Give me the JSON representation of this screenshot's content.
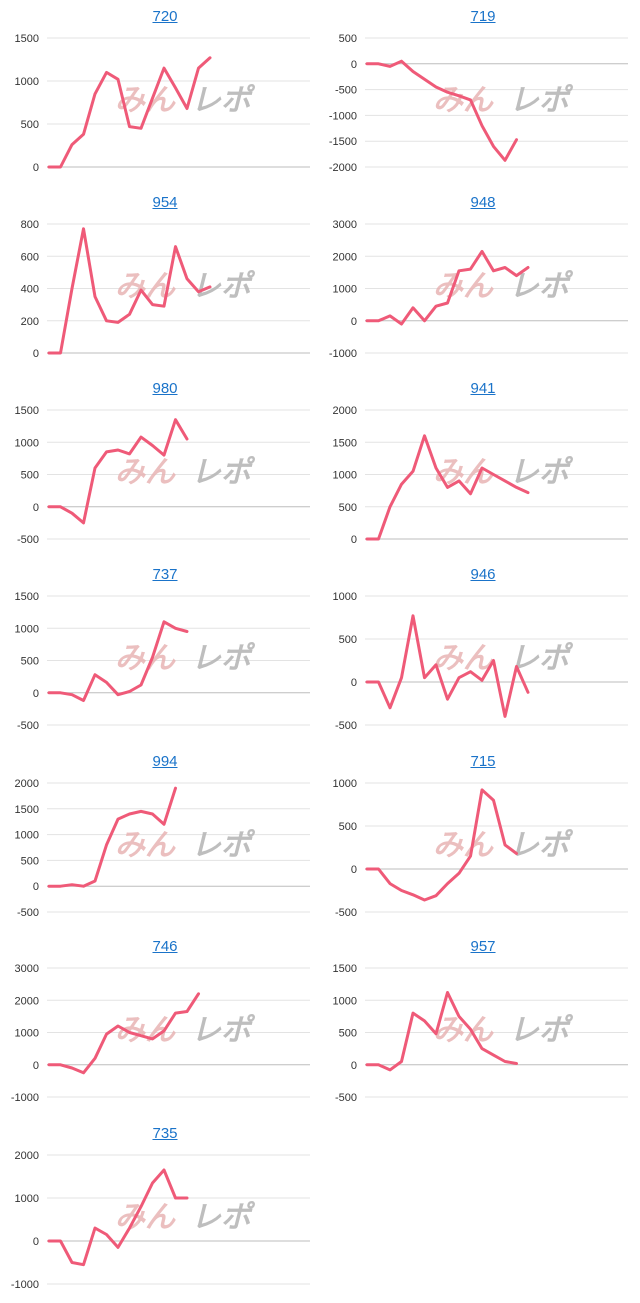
{
  "colors": {
    "line": "#ef5a78",
    "title": "#1a73c9"
  },
  "watermark": {
    "part1": "みん",
    "part2": "レポ"
  },
  "chart_data": [
    {
      "type": "line",
      "title": "720",
      "ylim": [
        0,
        1500
      ],
      "yticks": [
        0,
        500,
        1000,
        1500
      ],
      "values": [
        0,
        0,
        260,
        380,
        850,
        1100,
        1020,
        470,
        450,
        800,
        1150,
        920,
        680,
        1150,
        1270
      ]
    },
    {
      "type": "line",
      "title": "719",
      "ylim": [
        -2000,
        500
      ],
      "yticks": [
        -2000,
        -1500,
        -1000,
        -500,
        0,
        500
      ],
      "values": [
        0,
        0,
        -50,
        50,
        -150,
        -300,
        -450,
        -550,
        -620,
        -700,
        -1200,
        -1600,
        -1870,
        -1470
      ]
    },
    {
      "type": "line",
      "title": "954",
      "ylim": [
        0,
        800
      ],
      "yticks": [
        0,
        200,
        400,
        600,
        800
      ],
      "values": [
        0,
        0,
        400,
        770,
        350,
        200,
        190,
        240,
        390,
        300,
        290,
        660,
        460,
        380,
        410
      ]
    },
    {
      "type": "line",
      "title": "948",
      "ylim": [
        -1000,
        3000
      ],
      "yticks": [
        -1000,
        0,
        1000,
        2000,
        3000
      ],
      "values": [
        0,
        0,
        150,
        -100,
        400,
        0,
        450,
        550,
        1550,
        1600,
        2150,
        1550,
        1650,
        1400,
        1650
      ]
    },
    {
      "type": "line",
      "title": "980",
      "ylim": [
        -500,
        1500
      ],
      "yticks": [
        -500,
        0,
        500,
        1000,
        1500
      ],
      "values": [
        0,
        0,
        -100,
        -250,
        600,
        850,
        880,
        820,
        1080,
        950,
        800,
        1350,
        1050
      ]
    },
    {
      "type": "line",
      "title": "941",
      "ylim": [
        0,
        2000
      ],
      "yticks": [
        0,
        500,
        1000,
        1500,
        2000
      ],
      "values": [
        0,
        0,
        500,
        850,
        1050,
        1600,
        1100,
        800,
        900,
        700,
        1100,
        1000,
        900,
        800,
        720
      ]
    },
    {
      "type": "line",
      "title": "737",
      "ylim": [
        -500,
        1500
      ],
      "yticks": [
        -500,
        0,
        500,
        1000,
        1500
      ],
      "values": [
        0,
        0,
        -30,
        -120,
        280,
        160,
        -30,
        20,
        120,
        550,
        1100,
        1000,
        950
      ]
    },
    {
      "type": "line",
      "title": "946",
      "ylim": [
        -500,
        1000
      ],
      "yticks": [
        -500,
        0,
        500,
        1000
      ],
      "values": [
        0,
        0,
        -300,
        50,
        770,
        50,
        200,
        -200,
        50,
        120,
        20,
        250,
        -400,
        180,
        -120
      ]
    },
    {
      "type": "line",
      "title": "994",
      "ylim": [
        -500,
        2000
      ],
      "yticks": [
        -500,
        0,
        500,
        1000,
        1500,
        2000
      ],
      "values": [
        0,
        0,
        30,
        0,
        100,
        800,
        1300,
        1400,
        1450,
        1400,
        1200,
        1900
      ]
    },
    {
      "type": "line",
      "title": "715",
      "ylim": [
        -500,
        1000
      ],
      "yticks": [
        -500,
        0,
        500,
        1000
      ],
      "values": [
        0,
        0,
        -170,
        -250,
        -300,
        -360,
        -310,
        -170,
        -50,
        150,
        920,
        800,
        280,
        180
      ]
    },
    {
      "type": "line",
      "title": "746",
      "ylim": [
        -1000,
        3000
      ],
      "yticks": [
        -1000,
        0,
        1000,
        2000,
        3000
      ],
      "values": [
        0,
        0,
        -100,
        -250,
        200,
        950,
        1200,
        1000,
        900,
        800,
        1050,
        1600,
        1650,
        2200
      ]
    },
    {
      "type": "line",
      "title": "957",
      "ylim": [
        -500,
        1500
      ],
      "yticks": [
        -500,
        0,
        500,
        1000,
        1500
      ],
      "values": [
        0,
        0,
        -80,
        50,
        800,
        680,
        480,
        1120,
        750,
        550,
        250,
        150,
        50,
        20
      ]
    },
    {
      "type": "line",
      "title": "735",
      "ylim": [
        -1000,
        2000
      ],
      "yticks": [
        -1000,
        0,
        1000,
        2000
      ],
      "values": [
        0,
        0,
        -500,
        -550,
        300,
        150,
        -150,
        300,
        800,
        1350,
        1650,
        1000,
        1000
      ]
    }
  ]
}
